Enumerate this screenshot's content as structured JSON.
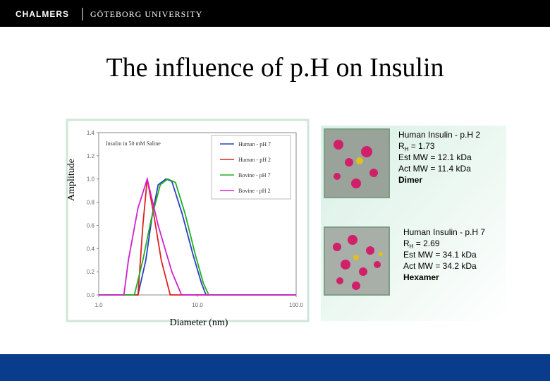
{
  "header": {
    "left": "CHALMERS",
    "right": "GÖTEBORG UNIVERSITY"
  },
  "title": "The influence of p.H on Insulin",
  "chart_data": {
    "type": "line",
    "title": "Insulin in 50 mM Saline",
    "xlabel": "Diameter (nm)",
    "ylabel": "Amplitude",
    "xscale": "log",
    "xlim": [
      1,
      100
    ],
    "xticks": [
      {
        "value": 1,
        "label": "1.0"
      },
      {
        "value": 10,
        "label": "10.0"
      },
      {
        "value": 100,
        "label": "100.0"
      }
    ],
    "ylim": [
      0,
      1.4
    ],
    "yticks": [
      {
        "value": 0,
        "label": "0.0"
      },
      0.2,
      0.4,
      0.6,
      0.8,
      {
        "value": 1,
        "label": "1.0"
      },
      1.2,
      1.4
    ],
    "legend": "upper right",
    "series": [
      {
        "name": "Human - pH 7",
        "color": "#2b3fc4",
        "x": [
          1,
          2.5,
          3.0,
          3.5,
          4.0,
          4.8,
          5.5,
          7,
          9,
          11,
          12.2,
          100
        ],
        "values": [
          0,
          0,
          0.3,
          0.7,
          0.95,
          1.0,
          0.98,
          0.7,
          0.35,
          0.1,
          0,
          0
        ]
      },
      {
        "name": "Human - pH 2",
        "color": "#e02020",
        "x": [
          1,
          2.5,
          2.8,
          3.1,
          3.6,
          4.3,
          5.3,
          100
        ],
        "values": [
          0,
          0,
          0.6,
          1.0,
          0.7,
          0.3,
          0,
          0
        ]
      },
      {
        "name": "Bovine - pH 7",
        "color": "#20b020",
        "x": [
          1,
          2.3,
          2.8,
          3.4,
          4.2,
          5.0,
          6,
          7.5,
          9.5,
          11.5,
          13,
          100
        ],
        "values": [
          0,
          0,
          0.3,
          0.65,
          0.95,
          1.0,
          0.97,
          0.7,
          0.35,
          0.1,
          0,
          0
        ]
      },
      {
        "name": "Bovine - pH 2",
        "color": "#d020d0",
        "x": [
          1,
          1.8,
          2.0,
          2.5,
          3.1,
          4,
          5.5,
          6.9,
          100
        ],
        "values": [
          0,
          0,
          0.3,
          0.75,
          1.0,
          0.6,
          0.2,
          0,
          0
        ]
      }
    ]
  },
  "panels": [
    {
      "name": "Human Insulin - p.H 2",
      "r": "R",
      "sub": "H",
      "rest": " = 1.73",
      "est": "Est MW = 12.1 kDa",
      "act": "Act MW = 11.4 kDa",
      "state": "Dimer"
    },
    {
      "name": "Human Insulin - p.H 7",
      "r": "R",
      "sub": "H",
      "rest": " = 2.69",
      "est": "Est MW = 34.1 kDa",
      "act": "Act MW = 34.2 kDa",
      "state": "Hexamer"
    }
  ]
}
